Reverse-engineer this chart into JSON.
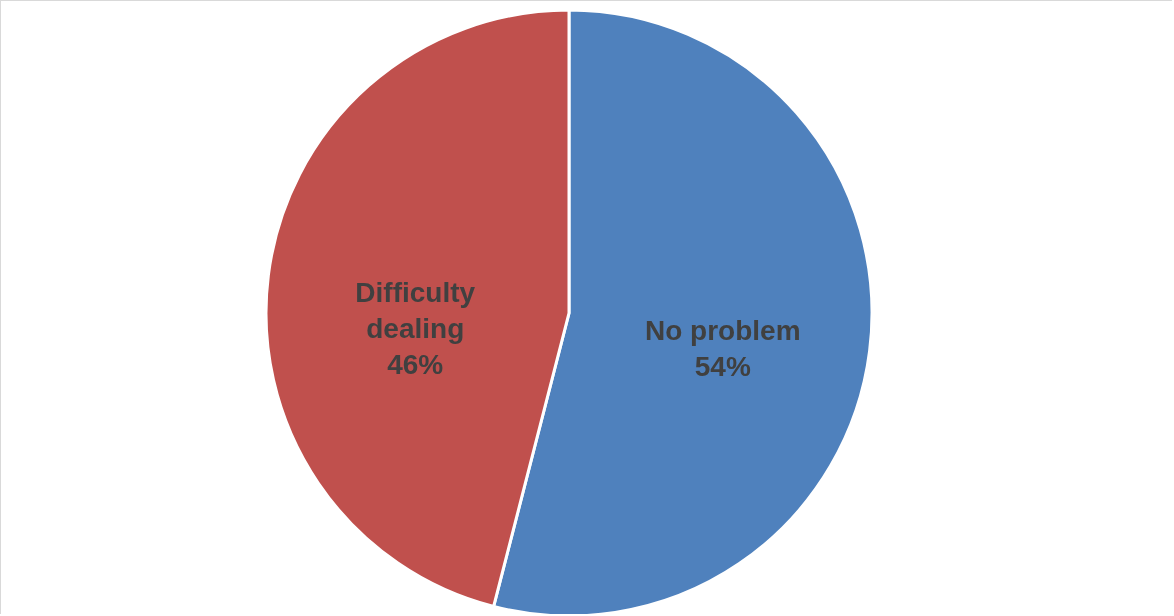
{
  "chart_data": {
    "type": "pie",
    "categories": [
      "No problem",
      "Difficulty dealing"
    ],
    "values": [
      54,
      46
    ],
    "colors": [
      "#4f81bd",
      "#c0504d"
    ],
    "value_labels": [
      "54%",
      "46%"
    ]
  }
}
